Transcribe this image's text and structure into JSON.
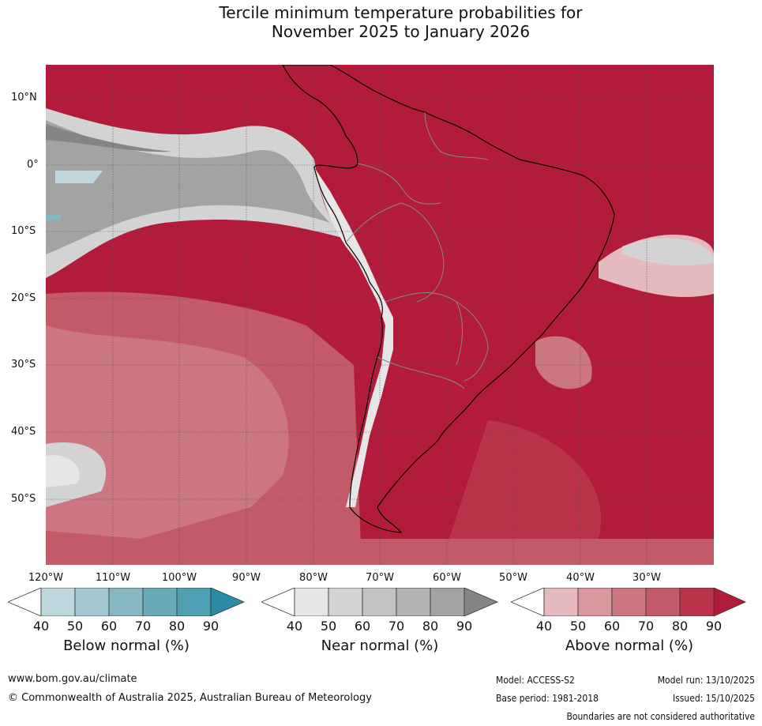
{
  "title": {
    "line1": "Tercile minimum temperature probabilities for",
    "line2": "November 2025 to January 2026"
  },
  "latitude_labels": [
    "10°N",
    "0°",
    "10°S",
    "20°S",
    "30°S",
    "40°S",
    "50°S"
  ],
  "longitude_labels": [
    "120°W",
    "110°W",
    "100°W",
    "90°W",
    "80°W",
    "70°W",
    "60°W",
    "50°W",
    "40°W",
    "30°W"
  ],
  "colorbars": [
    {
      "name": "below",
      "title": "Below normal (%)",
      "ticks": [
        "40",
        "50",
        "60",
        "70",
        "80",
        "90"
      ],
      "colors": [
        "#ffffff",
        "#bdd7dd",
        "#a3c7cf",
        "#87b8c2",
        "#6aaab8",
        "#4fa0b2",
        "#2c8ca4"
      ]
    },
    {
      "name": "near",
      "title": "Near normal (%)",
      "ticks": [
        "40",
        "50",
        "60",
        "70",
        "80",
        "90"
      ],
      "colors": [
        "#ffffff",
        "#e6e6e6",
        "#d3d3d3",
        "#c2c2c2",
        "#b3b3b3",
        "#a3a3a3",
        "#858585"
      ]
    },
    {
      "name": "above",
      "title": "Above normal (%)",
      "ticks": [
        "40",
        "50",
        "60",
        "70",
        "80",
        "90"
      ],
      "colors": [
        "#ffffff",
        "#e5b9bd",
        "#d9979e",
        "#cc7680",
        "#c35a67",
        "#bb3349",
        "#b21c3a"
      ]
    }
  ],
  "footer": {
    "website": "www.bom.gov.au/climate",
    "copyright": "© Commonwealth of Australia 2025, Australian Bureau of Meteorology",
    "model": "Model: ACCESS-S2",
    "base_period": "Base period: 1981-2018",
    "model_run": "Model run: 13/10/2025",
    "issued": "Issued: 15/10/2025",
    "disclaimer": "Boundaries are not considered authoritative"
  }
}
